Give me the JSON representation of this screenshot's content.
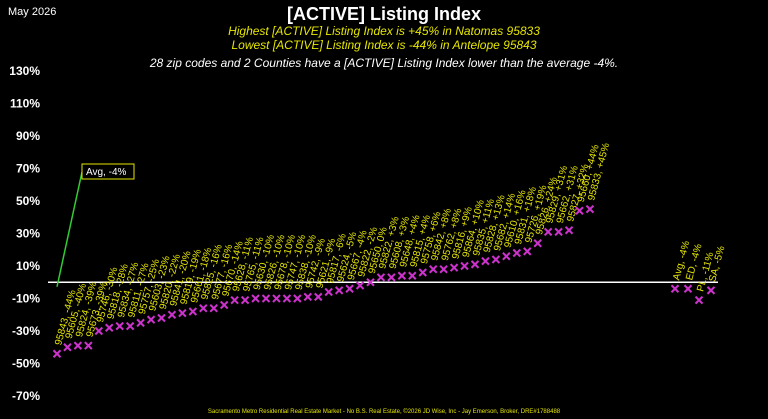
{
  "header": {
    "date": "May 2026",
    "title": "[ACTIVE] Listing Index",
    "highest": "Highest [ACTIVE] Listing Index is +45% in Natomas 95833",
    "lowest": "Lowest [ACTIVE] Listing Index is -44% in Antelope 95843",
    "note": "28 zip codes and 2 Counties have a [ACTIVE] Listing Index lower than the average -4%."
  },
  "footer": "Sacramento Metro Residential Real Estate Market - No B.S. Real Estate, ©2026 JD Wise, Inc - Jay Emerson, Broker, DRE#1788488",
  "colors": {
    "marker": "#cc33cc",
    "label": "#e6e600",
    "avg_line": "#33cc33",
    "baseline": "#ffffff"
  },
  "chart_data": {
    "type": "scatter",
    "ylim": [
      -70,
      130
    ],
    "yticks": [
      "130%",
      "110%",
      "90%",
      "70%",
      "50%",
      "30%",
      "10%",
      "-10%",
      "-30%",
      "-50%",
      "-70%"
    ],
    "average_callout": "Avg, -4%",
    "average_value": -4,
    "points": [
      {
        "label": "95843, -44%",
        "value": -44
      },
      {
        "label": "95605, -40%",
        "value": -40
      },
      {
        "label": "95824, -39%",
        "value": -39
      },
      {
        "label": "95673, -39%",
        "value": -39
      },
      {
        "label": "95746, -30%",
        "value": -30
      },
      {
        "label": "95818, -28%",
        "value": -28
      },
      {
        "label": "95834, -27%",
        "value": -27
      },
      {
        "label": "95811, -27%",
        "value": -27
      },
      {
        "label": "95757, -25%",
        "value": -25
      },
      {
        "label": "95603, -23%",
        "value": -23
      },
      {
        "label": "95820, -22%",
        "value": -22
      },
      {
        "label": "95841, -20%",
        "value": -20
      },
      {
        "label": "95819, -19%",
        "value": -19
      },
      {
        "label": "95661, -18%",
        "value": -18
      },
      {
        "label": "95825, -16%",
        "value": -16
      },
      {
        "label": "95677, -16%",
        "value": -16
      },
      {
        "label": "95670, -14%",
        "value": -14
      },
      {
        "label": "95628, -11%",
        "value": -11
      },
      {
        "label": "95765, -11%",
        "value": -11
      },
      {
        "label": "95630, -10%",
        "value": -10
      },
      {
        "label": "95826, -10%",
        "value": -10
      },
      {
        "label": "95678, -10%",
        "value": -10
      },
      {
        "label": "95747, -10%",
        "value": -10
      },
      {
        "label": "95838, -10%",
        "value": -10
      },
      {
        "label": "95742, -9%",
        "value": -9
      },
      {
        "label": "95621, -9%",
        "value": -9
      },
      {
        "label": "95817, -6%",
        "value": -6
      },
      {
        "label": "95624, -5%",
        "value": -5
      },
      {
        "label": "95667, -4%",
        "value": -4
      },
      {
        "label": "95822, -2%",
        "value": -2
      },
      {
        "label": "95650, 0%",
        "value": 0
      },
      {
        "label": "95822, +3%",
        "value": 3
      },
      {
        "label": "95608, +3%",
        "value": 3
      },
      {
        "label": "95648, +4%",
        "value": 4
      },
      {
        "label": "95815, +4%",
        "value": 4
      },
      {
        "label": "95758, +6%",
        "value": 6
      },
      {
        "label": "95842, +8%",
        "value": 8
      },
      {
        "label": "95762, +8%",
        "value": 8
      },
      {
        "label": "95816, +9%",
        "value": 9
      },
      {
        "label": "95864, +10%",
        "value": 10
      },
      {
        "label": "95835, +11%",
        "value": 11
      },
      {
        "label": "95828, +13%",
        "value": 13
      },
      {
        "label": "95682, +14%",
        "value": 14
      },
      {
        "label": "95610, +16%",
        "value": 16
      },
      {
        "label": "95831, +18%",
        "value": 18
      },
      {
        "label": "95726, +19%",
        "value": 19
      },
      {
        "label": "95826, +24%",
        "value": 24
      },
      {
        "label": "95829, +31%",
        "value": 31
      },
      {
        "label": "95662, +31%",
        "value": 31
      },
      {
        "label": "95827, +32%",
        "value": 32
      },
      {
        "label": "95660, +44%",
        "value": 44
      },
      {
        "label": "95833, +45%",
        "value": 45
      }
    ],
    "summary_points": [
      {
        "label": "Avg, -4%",
        "value": -4
      },
      {
        "label": "ED, -4%",
        "value": -4
      },
      {
        "label": "PL, -11%",
        "value": -11
      },
      {
        "label": "SA, -5%",
        "value": -5
      }
    ]
  }
}
